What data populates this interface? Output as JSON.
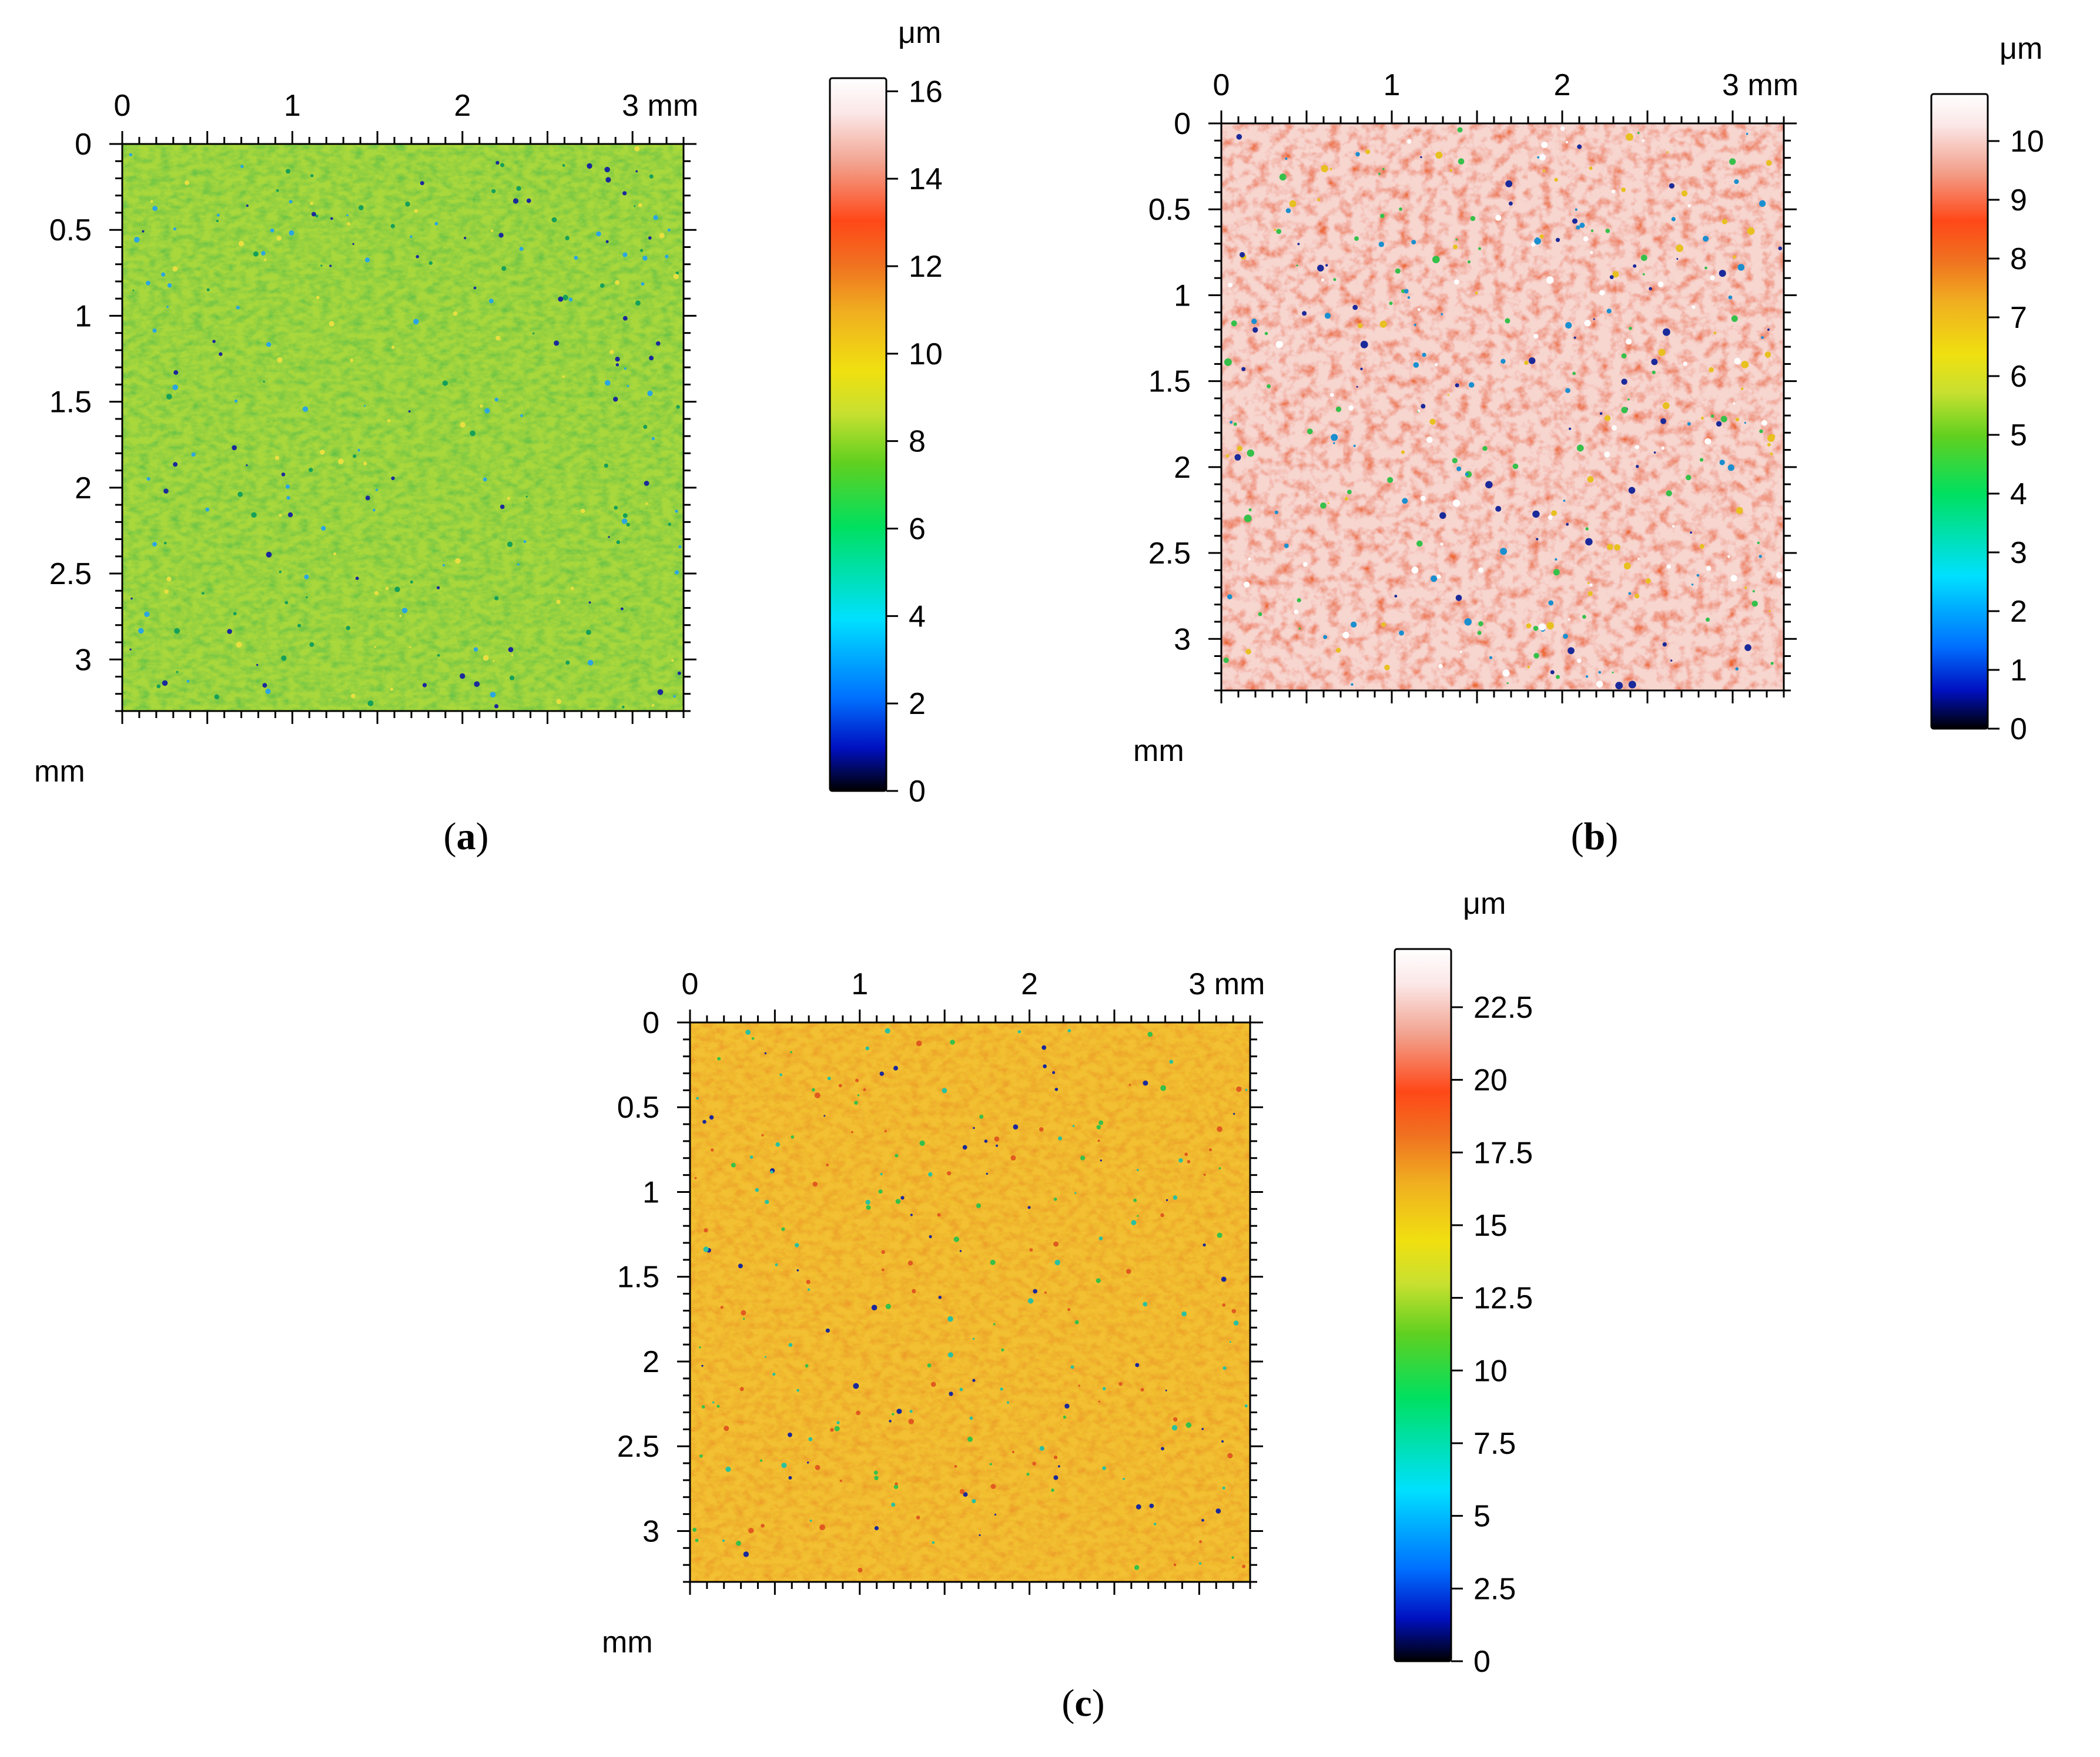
{
  "chart_data": [
    {
      "type": "heatmap",
      "panel_label": "a",
      "x_ticks": [
        "0",
        "1",
        "2",
        "3 mm"
      ],
      "y_ticks": [
        "0",
        "0.5",
        "1",
        "1.5",
        "2",
        "2.5",
        "3"
      ],
      "axis_unit": "mm",
      "x_range_mm": [
        0,
        3.3
      ],
      "y_range_mm": [
        0,
        3.3
      ],
      "colorbar_unit": "μm",
      "colorbar_ticks": [
        "0",
        "2",
        "4",
        "6",
        "8",
        "10",
        "12",
        "14",
        "16"
      ],
      "colorbar_range": [
        0,
        16.3
      ],
      "surface": {
        "dominant_height_um": 8.5,
        "spread_um": 1.2,
        "description_colors": [
          "#9ad43a",
          "#c9e63a",
          "#6cc84a"
        ]
      }
    },
    {
      "type": "heatmap",
      "panel_label": "b",
      "x_ticks": [
        "0",
        "1",
        "2",
        "3 mm"
      ],
      "y_ticks": [
        "0",
        "0.5",
        "1",
        "1.5",
        "2",
        "2.5",
        "3"
      ],
      "axis_unit": "mm",
      "x_range_mm": [
        0,
        3.3
      ],
      "y_range_mm": [
        0,
        3.3
      ],
      "colorbar_unit": "μm",
      "colorbar_ticks": [
        "0",
        "1",
        "2",
        "3",
        "4",
        "5",
        "6",
        "7",
        "8",
        "9",
        "10"
      ],
      "colorbar_range": [
        0,
        10.8
      ],
      "surface": {
        "dominant_height_um": 9.8,
        "spread_um": 1.5,
        "description_colors": [
          "#f6d2cc",
          "#f28a6a",
          "#e8602a"
        ]
      }
    },
    {
      "type": "heatmap",
      "panel_label": "c",
      "x_ticks": [
        "0",
        "1",
        "2",
        "3 mm"
      ],
      "y_ticks": [
        "0",
        "0.5",
        "1",
        "1.5",
        "2",
        "2.5",
        "3"
      ],
      "axis_unit": "mm",
      "x_range_mm": [
        0,
        3.3
      ],
      "y_range_mm": [
        0,
        3.3
      ],
      "colorbar_unit": "μm",
      "colorbar_ticks": [
        "0",
        "2.5",
        "5",
        "7.5",
        "10",
        "12.5",
        "15",
        "17.5",
        "20",
        "22.5"
      ],
      "colorbar_range": [
        0,
        24.5
      ],
      "surface": {
        "dominant_height_um": 15.5,
        "spread_um": 2.0,
        "description_colors": [
          "#f2d23a",
          "#f0a02a",
          "#a6d83a"
        ]
      }
    }
  ],
  "captions": {
    "a": "a",
    "b": "b",
    "c": "c"
  },
  "colorscale": [
    "#000000",
    "#0010c0",
    "#0070ff",
    "#00e0ff",
    "#00e060",
    "#60d020",
    "#c8e030",
    "#f0e010",
    "#f0b020",
    "#f07020",
    "#ff4818",
    "#f2a28e",
    "#fbe6e6",
    "#ffffff"
  ]
}
